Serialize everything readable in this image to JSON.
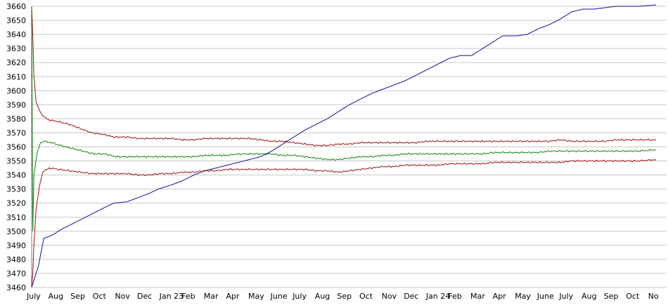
{
  "chart_data": {
    "type": "line",
    "title": "",
    "xlabel": "",
    "ylabel": "",
    "ylim": [
      3460,
      3660
    ],
    "yticks": [
      3460,
      3470,
      3480,
      3490,
      3500,
      3510,
      3520,
      3530,
      3540,
      3550,
      3560,
      3570,
      3580,
      3590,
      3600,
      3610,
      3620,
      3630,
      3640,
      3650,
      3660
    ],
    "grid": "horizontal",
    "legend": "none",
    "x_tick_labels": [
      "July",
      "Aug",
      "Sep",
      "Oct",
      "Nov",
      "Dec",
      "Jan 23",
      "Feb",
      "Mar",
      "Apr",
      "May",
      "June",
      "July",
      "Aug",
      "Sep",
      "Oct",
      "Nov",
      "Dec",
      "Jan 24",
      "Feb",
      "Mar",
      "Apr",
      "May",
      "June",
      "July",
      "Aug",
      "Sep",
      "Oct",
      "No"
    ],
    "x_range_months": [
      0,
      28.2
    ],
    "series": [
      {
        "color": "#1010a0",
        "points": [
          [
            0,
            3460
          ],
          [
            0.1,
            3465
          ],
          [
            0.3,
            3475
          ],
          [
            0.55,
            3495
          ],
          [
            0.9,
            3497
          ],
          [
            1.3,
            3501
          ],
          [
            1.8,
            3505
          ],
          [
            2.3,
            3509
          ],
          [
            2.8,
            3513
          ],
          [
            3.3,
            3517
          ],
          [
            3.7,
            3520
          ],
          [
            4.3,
            3521
          ],
          [
            4.8,
            3524
          ],
          [
            5.3,
            3527
          ],
          [
            5.7,
            3530
          ],
          [
            6.3,
            3533
          ],
          [
            6.8,
            3536
          ],
          [
            7.3,
            3540
          ],
          [
            7.8,
            3543
          ],
          [
            8.3,
            3545
          ],
          [
            8.8,
            3547
          ],
          [
            9.3,
            3549
          ],
          [
            9.8,
            3551
          ],
          [
            10.3,
            3553
          ],
          [
            10.8,
            3557
          ],
          [
            11.3,
            3562
          ],
          [
            11.8,
            3567
          ],
          [
            12.3,
            3572
          ],
          [
            12.8,
            3576
          ],
          [
            13.3,
            3580
          ],
          [
            13.8,
            3585
          ],
          [
            14.3,
            3590
          ],
          [
            14.8,
            3594
          ],
          [
            15.3,
            3598
          ],
          [
            15.8,
            3601
          ],
          [
            16.3,
            3604
          ],
          [
            16.8,
            3607
          ],
          [
            17.3,
            3611
          ],
          [
            17.8,
            3615
          ],
          [
            18.3,
            3619
          ],
          [
            18.8,
            3623
          ],
          [
            19.3,
            3625
          ],
          [
            19.8,
            3625
          ],
          [
            20.3,
            3630
          ],
          [
            20.8,
            3635
          ],
          [
            21.2,
            3639
          ],
          [
            21.8,
            3639
          ],
          [
            22.3,
            3640
          ],
          [
            22.8,
            3644
          ],
          [
            23.3,
            3647
          ],
          [
            23.8,
            3651
          ],
          [
            24.3,
            3656
          ],
          [
            24.8,
            3658
          ],
          [
            25.3,
            3658
          ],
          [
            25.8,
            3659
          ],
          [
            26.3,
            3660
          ],
          [
            26.8,
            3660
          ],
          [
            27.3,
            3660
          ],
          [
            28.1,
            3661
          ]
        ]
      },
      {
        "color": "#a01010",
        "points": [
          [
            0,
            3660
          ],
          [
            0.05,
            3640
          ],
          [
            0.1,
            3610
          ],
          [
            0.2,
            3592
          ],
          [
            0.35,
            3586
          ],
          [
            0.5,
            3582
          ],
          [
            0.8,
            3579
          ],
          [
            1.2,
            3578
          ],
          [
            1.7,
            3576
          ],
          [
            2.2,
            3573
          ],
          [
            2.7,
            3570
          ],
          [
            3.2,
            3569
          ],
          [
            3.7,
            3567
          ],
          [
            4.3,
            3567
          ],
          [
            4.8,
            3566
          ],
          [
            5.3,
            3566
          ],
          [
            5.8,
            3566
          ],
          [
            6.3,
            3566
          ],
          [
            6.8,
            3565
          ],
          [
            7.3,
            3565
          ],
          [
            7.8,
            3566
          ],
          [
            8.3,
            3566
          ],
          [
            8.8,
            3566
          ],
          [
            9.3,
            3566
          ],
          [
            9.8,
            3566
          ],
          [
            10.3,
            3565
          ],
          [
            10.8,
            3564
          ],
          [
            11.3,
            3564
          ],
          [
            11.8,
            3563
          ],
          [
            12.3,
            3562
          ],
          [
            12.8,
            3561
          ],
          [
            13.3,
            3561
          ],
          [
            13.8,
            3562
          ],
          [
            14.3,
            3562
          ],
          [
            14.8,
            3563
          ],
          [
            15.3,
            3563
          ],
          [
            15.8,
            3563
          ],
          [
            16.3,
            3563
          ],
          [
            16.8,
            3563
          ],
          [
            17.3,
            3563
          ],
          [
            17.8,
            3564
          ],
          [
            18.3,
            3564
          ],
          [
            18.8,
            3564
          ],
          [
            19.3,
            3564
          ],
          [
            19.8,
            3564
          ],
          [
            20.3,
            3564
          ],
          [
            20.8,
            3564
          ],
          [
            21.3,
            3564
          ],
          [
            21.8,
            3564
          ],
          [
            22.3,
            3564
          ],
          [
            22.8,
            3564
          ],
          [
            23.3,
            3564
          ],
          [
            23.8,
            3565
          ],
          [
            24.3,
            3564
          ],
          [
            24.8,
            3564
          ],
          [
            25.3,
            3564
          ],
          [
            25.8,
            3564
          ],
          [
            26.3,
            3565
          ],
          [
            26.8,
            3565
          ],
          [
            27.3,
            3565
          ],
          [
            28.1,
            3565
          ]
        ]
      },
      {
        "color": "#a01010",
        "points": [
          [
            0,
            3460
          ],
          [
            0.05,
            3470
          ],
          [
            0.1,
            3490
          ],
          [
            0.2,
            3515
          ],
          [
            0.35,
            3532
          ],
          [
            0.5,
            3542
          ],
          [
            0.8,
            3545
          ],
          [
            1.2,
            3544
          ],
          [
            1.7,
            3543
          ],
          [
            2.2,
            3542
          ],
          [
            2.7,
            3541
          ],
          [
            3.2,
            3541
          ],
          [
            3.7,
            3541
          ],
          [
            4.3,
            3541
          ],
          [
            4.8,
            3540
          ],
          [
            5.3,
            3540
          ],
          [
            5.8,
            3541
          ],
          [
            6.3,
            3541
          ],
          [
            6.8,
            3542
          ],
          [
            7.3,
            3542
          ],
          [
            7.8,
            3543
          ],
          [
            8.3,
            3543
          ],
          [
            8.8,
            3544
          ],
          [
            9.3,
            3544
          ],
          [
            9.8,
            3544
          ],
          [
            10.3,
            3544
          ],
          [
            10.8,
            3544
          ],
          [
            11.3,
            3544
          ],
          [
            11.8,
            3544
          ],
          [
            12.3,
            3544
          ],
          [
            12.8,
            3543
          ],
          [
            13.3,
            3543
          ],
          [
            13.8,
            3542
          ],
          [
            14.3,
            3543
          ],
          [
            14.8,
            3544
          ],
          [
            15.3,
            3545
          ],
          [
            15.8,
            3546
          ],
          [
            16.3,
            3546
          ],
          [
            16.8,
            3547
          ],
          [
            17.3,
            3547
          ],
          [
            17.8,
            3547
          ],
          [
            18.3,
            3547
          ],
          [
            18.8,
            3548
          ],
          [
            19.3,
            3548
          ],
          [
            19.8,
            3548
          ],
          [
            20.3,
            3548
          ],
          [
            20.8,
            3549
          ],
          [
            21.3,
            3549
          ],
          [
            21.8,
            3549
          ],
          [
            22.3,
            3549
          ],
          [
            22.8,
            3549
          ],
          [
            23.3,
            3549
          ],
          [
            23.8,
            3549
          ],
          [
            24.3,
            3550
          ],
          [
            24.8,
            3550
          ],
          [
            25.3,
            3550
          ],
          [
            25.8,
            3550
          ],
          [
            26.3,
            3550
          ],
          [
            26.8,
            3550
          ],
          [
            27.3,
            3550
          ],
          [
            28.1,
            3551
          ]
        ]
      },
      {
        "color": "#108010",
        "points": [
          [
            0,
            3660
          ],
          [
            0.05,
            3500
          ],
          [
            0.1,
            3540
          ],
          [
            0.25,
            3556
          ],
          [
            0.4,
            3563
          ],
          [
            0.6,
            3564
          ],
          [
            0.9,
            3563
          ],
          [
            1.3,
            3561
          ],
          [
            1.8,
            3559
          ],
          [
            2.3,
            3557
          ],
          [
            2.8,
            3555
          ],
          [
            3.3,
            3555
          ],
          [
            3.8,
            3553
          ],
          [
            4.3,
            3553
          ],
          [
            4.8,
            3553
          ],
          [
            5.3,
            3553
          ],
          [
            5.8,
            3553
          ],
          [
            6.3,
            3553
          ],
          [
            6.8,
            3553
          ],
          [
            7.3,
            3553
          ],
          [
            7.8,
            3554
          ],
          [
            8.3,
            3554
          ],
          [
            8.8,
            3554
          ],
          [
            9.3,
            3555
          ],
          [
            9.8,
            3555
          ],
          [
            10.3,
            3555
          ],
          [
            10.8,
            3555
          ],
          [
            11.3,
            3554
          ],
          [
            11.8,
            3554
          ],
          [
            12.3,
            3553
          ],
          [
            12.8,
            3552
          ],
          [
            13.3,
            3551
          ],
          [
            13.8,
            3551
          ],
          [
            14.3,
            3552
          ],
          [
            14.8,
            3553
          ],
          [
            15.3,
            3553
          ],
          [
            15.8,
            3554
          ],
          [
            16.3,
            3554
          ],
          [
            16.8,
            3555
          ],
          [
            17.3,
            3555
          ],
          [
            17.8,
            3555
          ],
          [
            18.3,
            3555
          ],
          [
            18.8,
            3555
          ],
          [
            19.3,
            3555
          ],
          [
            19.8,
            3555
          ],
          [
            20.3,
            3555
          ],
          [
            20.8,
            3556
          ],
          [
            21.3,
            3556
          ],
          [
            21.8,
            3556
          ],
          [
            22.3,
            3556
          ],
          [
            22.8,
            3556
          ],
          [
            23.3,
            3557
          ],
          [
            23.8,
            3557
          ],
          [
            24.3,
            3557
          ],
          [
            24.8,
            3557
          ],
          [
            25.3,
            3557
          ],
          [
            25.8,
            3557
          ],
          [
            26.3,
            3557
          ],
          [
            26.8,
            3557
          ],
          [
            27.3,
            3557
          ],
          [
            28.1,
            3558
          ]
        ]
      }
    ]
  }
}
